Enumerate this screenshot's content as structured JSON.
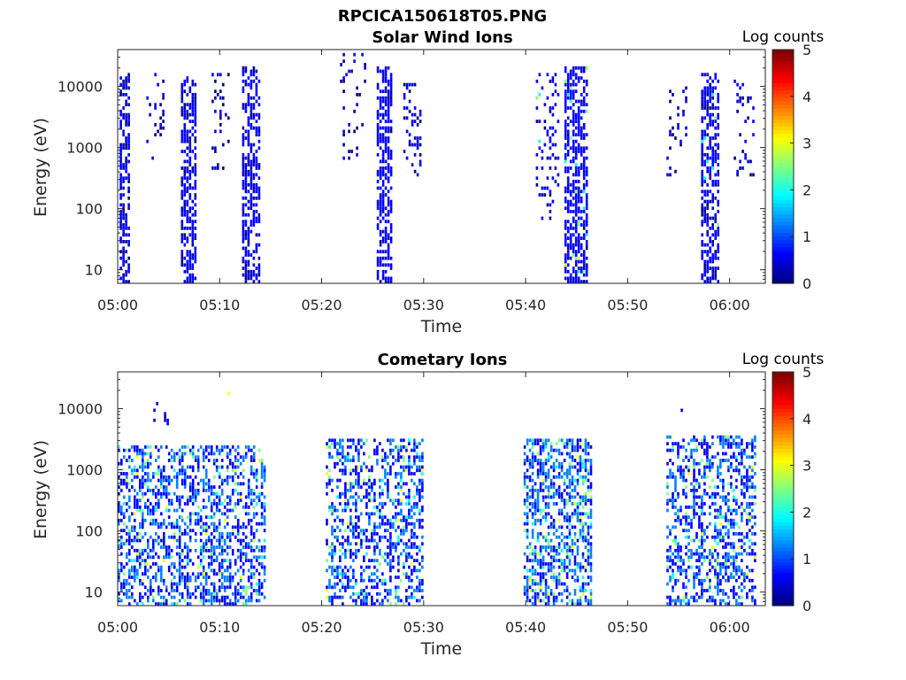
{
  "figure_title": "RPCICA150618T05.PNG",
  "colors": {
    "cmap": [
      "#00008f",
      "#0000ff",
      "#0080ff",
      "#00ffff",
      "#80ff80",
      "#ffff00",
      "#ff8000",
      "#ff0000",
      "#800000"
    ]
  },
  "chart_data": [
    {
      "type": "heatmap",
      "title": "Solar Wind Ions",
      "xlabel": "Time",
      "ylabel": "Energy (eV)",
      "x_tick_labels": [
        "05:00",
        "05:10",
        "05:20",
        "05:30",
        "05:40",
        "05:50",
        "06:00"
      ],
      "x_tick_minutes": [
        0,
        10,
        20,
        30,
        40,
        50,
        60
      ],
      "xlim_minutes": [
        0,
        63.5
      ],
      "y_scale": "log",
      "ylim": [
        6,
        40000
      ],
      "y_ticks": [
        10,
        100,
        1000,
        10000
      ],
      "y_tick_labels": [
        "10",
        "100",
        "1000",
        "10000"
      ],
      "colorbar": {
        "label": "Log counts",
        "range": [
          0,
          5
        ],
        "ticks": [
          "0",
          "1",
          "2",
          "3",
          "4",
          "5"
        ]
      },
      "clusters": [
        {
          "t_start": 0.2,
          "t_end": 1.2,
          "e_min": 6,
          "e_max": 15000,
          "density": 0.55,
          "base_level": 0.4,
          "hot": 0.0
        },
        {
          "t_start": 2.8,
          "t_end": 4.4,
          "e_min": 500,
          "e_max": 15000,
          "density": 0.12,
          "base_level": 0.3,
          "hot": 0.0
        },
        {
          "t_start": 6.2,
          "t_end": 7.6,
          "e_min": 6,
          "e_max": 15000,
          "density": 0.6,
          "base_level": 0.4,
          "hot": 0.0
        },
        {
          "t_start": 9.2,
          "t_end": 11.0,
          "e_min": 400,
          "e_max": 15000,
          "density": 0.15,
          "base_level": 0.3,
          "hot": 0.0
        },
        {
          "t_start": 12.2,
          "t_end": 14.0,
          "e_min": 6,
          "e_max": 20000,
          "density": 0.55,
          "base_level": 0.4,
          "hot": 0.0
        },
        {
          "t_start": 21.8,
          "t_end": 24.4,
          "e_min": 600,
          "e_max": 35000,
          "density": 0.12,
          "base_level": 0.3,
          "hot": 0.0
        },
        {
          "t_start": 25.4,
          "t_end": 26.8,
          "e_min": 6,
          "e_max": 20000,
          "density": 0.6,
          "base_level": 0.5,
          "hot": 0.0
        },
        {
          "t_start": 28.0,
          "t_end": 29.8,
          "e_min": 300,
          "e_max": 12000,
          "density": 0.2,
          "base_level": 0.4,
          "hot": 0.0
        },
        {
          "t_start": 41.0,
          "t_end": 43.2,
          "e_min": 60,
          "e_max": 15000,
          "density": 0.18,
          "base_level": 0.4,
          "hot": 0.04
        },
        {
          "t_start": 43.8,
          "t_end": 46.0,
          "e_min": 6,
          "e_max": 20000,
          "density": 0.6,
          "base_level": 0.5,
          "hot": 0.05
        },
        {
          "t_start": 53.8,
          "t_end": 55.8,
          "e_min": 300,
          "e_max": 10000,
          "density": 0.14,
          "base_level": 0.3,
          "hot": 0.0
        },
        {
          "t_start": 57.2,
          "t_end": 58.8,
          "e_min": 6,
          "e_max": 15000,
          "density": 0.55,
          "base_level": 0.4,
          "hot": 0.03
        },
        {
          "t_start": 60.4,
          "t_end": 62.4,
          "e_min": 300,
          "e_max": 12000,
          "density": 0.2,
          "base_level": 0.3,
          "hot": 0.0
        }
      ]
    },
    {
      "type": "heatmap",
      "title": "Cometary Ions",
      "xlabel": "Time",
      "ylabel": "Energy (eV)",
      "x_tick_labels": [
        "05:00",
        "05:10",
        "05:20",
        "05:30",
        "05:40",
        "05:50",
        "06:00"
      ],
      "x_tick_minutes": [
        0,
        10,
        20,
        30,
        40,
        50,
        60
      ],
      "xlim_minutes": [
        0,
        63.5
      ],
      "y_scale": "log",
      "ylim": [
        6,
        40000
      ],
      "y_ticks": [
        10,
        100,
        1000,
        10000
      ],
      "y_tick_labels": [
        "10",
        "100",
        "1000",
        "10000"
      ],
      "colorbar": {
        "label": "Log counts",
        "range": [
          0,
          5
        ],
        "ticks": [
          "0",
          "1",
          "2",
          "3",
          "4",
          "5"
        ]
      },
      "clusters": [
        {
          "t_start": 0.0,
          "t_end": 14.3,
          "e_min": 6,
          "e_max": 2500,
          "density": 0.45,
          "base_level": 0.9,
          "hot": 0.12
        },
        {
          "t_start": 3.5,
          "t_end": 4.8,
          "e_min": 5000,
          "e_max": 15000,
          "density": 0.12,
          "base_level": 0.5,
          "hot": 0.0
        },
        {
          "t_start": 10.5,
          "t_end": 11.0,
          "e_min": 12000,
          "e_max": 20000,
          "density": 0.2,
          "base_level": 1.5,
          "hot": 0.3
        },
        {
          "t_start": 20.4,
          "t_end": 30.0,
          "e_min": 6,
          "e_max": 3000,
          "density": 0.4,
          "base_level": 0.9,
          "hot": 0.12
        },
        {
          "t_start": 39.8,
          "t_end": 46.3,
          "e_min": 6,
          "e_max": 3000,
          "density": 0.5,
          "base_level": 1.0,
          "hot": 0.15
        },
        {
          "t_start": 53.8,
          "t_end": 62.4,
          "e_min": 6,
          "e_max": 3500,
          "density": 0.42,
          "base_level": 0.9,
          "hot": 0.12
        },
        {
          "t_start": 55.2,
          "t_end": 55.8,
          "e_min": 8000,
          "e_max": 15000,
          "density": 0.15,
          "base_level": 0.5,
          "hot": 0.0
        }
      ]
    }
  ]
}
